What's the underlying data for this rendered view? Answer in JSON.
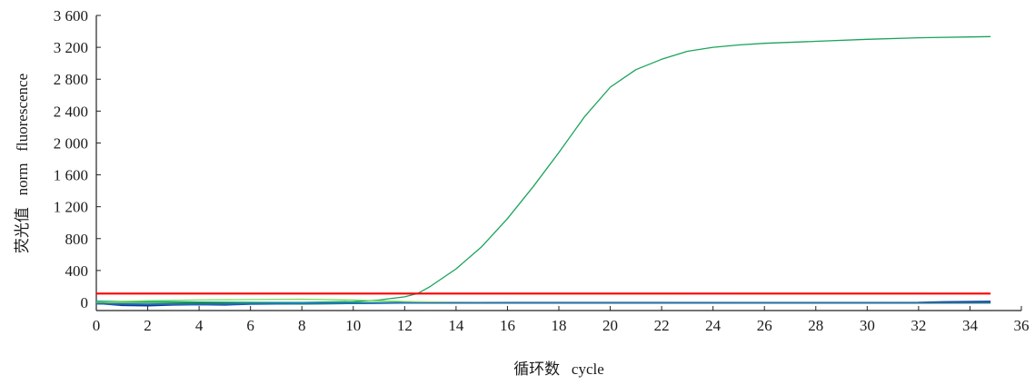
{
  "chart_data": {
    "type": "line",
    "title": "",
    "xlabel": "循环数   cycle",
    "ylabel": "荧光值   norm   fluorescence",
    "xlim": [
      0,
      36
    ],
    "ylim": [
      -80,
      3600
    ],
    "x_ticks": [
      0,
      2,
      4,
      6,
      8,
      10,
      12,
      14,
      16,
      18,
      20,
      22,
      24,
      26,
      28,
      30,
      32,
      34,
      36
    ],
    "y_ticks": [
      0,
      400,
      800,
      1200,
      1600,
      2000,
      2400,
      2800,
      3200,
      3600
    ],
    "x_tick_labels": [
      "0",
      "2",
      "4",
      "6",
      "8",
      "10",
      "12",
      "14",
      "16",
      "18",
      "20",
      "22",
      "24",
      "26",
      "28",
      "30",
      "32",
      "34",
      "36"
    ],
    "y_tick_labels": [
      "0",
      "400",
      "800",
      "1 200",
      "1 600",
      "2 000",
      "2 400",
      "2 800",
      "3 200",
      "3 600"
    ],
    "grid": false,
    "legend": "none",
    "series": [
      {
        "color": "#1aa35a",
        "x": [
          0,
          2,
          4,
          6,
          8,
          10,
          11,
          12,
          12.5,
          13,
          14,
          15,
          16,
          17,
          18,
          19,
          20,
          21,
          22,
          23,
          24,
          25,
          26,
          28,
          30,
          32,
          34,
          34.8
        ],
        "y": [
          0,
          0,
          0,
          0,
          0,
          10,
          30,
          70,
          110,
          200,
          420,
          700,
          1050,
          1450,
          1880,
          2330,
          2700,
          2920,
          3050,
          3150,
          3200,
          3230,
          3250,
          3275,
          3300,
          3320,
          3330,
          3335
        ]
      },
      {
        "color": "#ff0000",
        "x": [
          0,
          34.8
        ],
        "y": [
          110,
          110
        ]
      },
      {
        "color": "#0a3d8f",
        "x": [
          0,
          1,
          2,
          3,
          4,
          5,
          6,
          8,
          10,
          12,
          14,
          16,
          20,
          25,
          30,
          32,
          33,
          34.8
        ],
        "y": [
          -10,
          -35,
          -40,
          -30,
          -25,
          -30,
          -20,
          -15,
          -10,
          -5,
          -5,
          -5,
          -5,
          -5,
          -5,
          -3,
          5,
          10
        ]
      },
      {
        "color": "#00a88a",
        "x": [
          0,
          2,
          4,
          6,
          8,
          10,
          12,
          14,
          16,
          20,
          25,
          30,
          34.8
        ],
        "y": [
          15,
          10,
          5,
          0,
          -5,
          0,
          -5,
          -5,
          -10,
          -10,
          -5,
          -5,
          -5
        ]
      },
      {
        "color": "#7ed957",
        "x": [
          0,
          2,
          4,
          6,
          8,
          10,
          12,
          14,
          16,
          20,
          25,
          30,
          34.8
        ],
        "y": [
          0,
          20,
          30,
          35,
          40,
          30,
          10,
          0,
          -5,
          -5,
          -5,
          -5,
          -5
        ]
      },
      {
        "color": "#1f7a3a",
        "x": [
          0,
          2,
          4,
          6,
          8,
          10,
          12,
          14,
          16,
          20,
          25,
          30,
          34.8
        ],
        "y": [
          -15,
          -20,
          -10,
          -15,
          -20,
          -15,
          -10,
          -10,
          -10,
          -10,
          -10,
          -10,
          -8
        ]
      },
      {
        "color": "#2e6ad1",
        "x": [
          0,
          2,
          4,
          6,
          8,
          10,
          12,
          14,
          16,
          20,
          25,
          30,
          34.8
        ],
        "y": [
          -20,
          -25,
          -25,
          -20,
          -15,
          -10,
          -10,
          -5,
          -5,
          -5,
          -5,
          -5,
          0
        ]
      }
    ]
  }
}
